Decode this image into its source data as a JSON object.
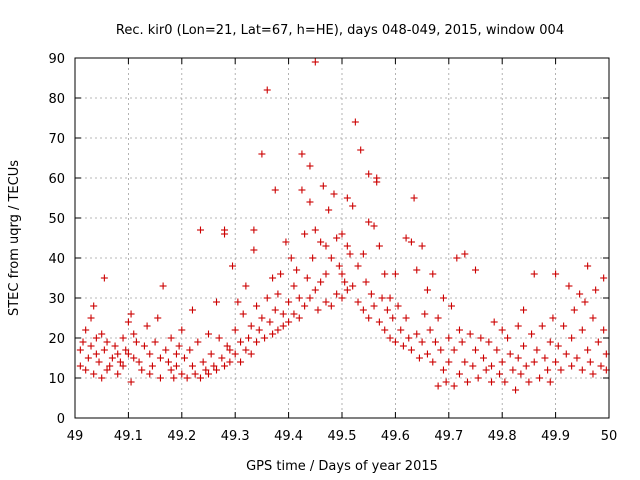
{
  "chart_data": {
    "type": "scatter",
    "title": "Rec. kir0 (Lon=21, Lat=67, h=HE), days 048-049, 2015, window 004",
    "xlabel": "GPS time / Days of year 2015",
    "ylabel": "STEC from uqrg / TECUs",
    "xlim": [
      49,
      50
    ],
    "ylim": [
      0,
      90
    ],
    "x_ticks": [
      "49",
      "49.1",
      "49.2",
      "49.3",
      "49.4",
      "49.5",
      "49.6",
      "49.7",
      "49.8",
      "49.9",
      "50"
    ],
    "y_ticks": [
      "0",
      "10",
      "20",
      "30",
      "40",
      "50",
      "60",
      "70",
      "80",
      "90"
    ],
    "grid": true,
    "marker": "+",
    "marker_color": "#cc0000",
    "points": [
      [
        49.01,
        17
      ],
      [
        49.01,
        13
      ],
      [
        49.015,
        19
      ],
      [
        49.02,
        22
      ],
      [
        49.02,
        12
      ],
      [
        49.025,
        15
      ],
      [
        49.03,
        18
      ],
      [
        49.03,
        25
      ],
      [
        49.035,
        28
      ],
      [
        49.035,
        11
      ],
      [
        49.04,
        16
      ],
      [
        49.04,
        20
      ],
      [
        49.045,
        14
      ],
      [
        49.05,
        21
      ],
      [
        49.05,
        10
      ],
      [
        49.055,
        35
      ],
      [
        49.055,
        17
      ],
      [
        49.06,
        19
      ],
      [
        49.06,
        12
      ],
      [
        49.065,
        13
      ],
      [
        49.07,
        15
      ],
      [
        49.075,
        18
      ],
      [
        49.08,
        16
      ],
      [
        49.08,
        11
      ],
      [
        49.085,
        14
      ],
      [
        49.09,
        20
      ],
      [
        49.09,
        13
      ],
      [
        49.095,
        17
      ],
      [
        49.1,
        24
      ],
      [
        49.1,
        16
      ],
      [
        49.105,
        26
      ],
      [
        49.105,
        9
      ],
      [
        49.11,
        21
      ],
      [
        49.11,
        15
      ],
      [
        49.115,
        19
      ],
      [
        49.12,
        14
      ],
      [
        49.125,
        12
      ],
      [
        49.13,
        18
      ],
      [
        49.135,
        23
      ],
      [
        49.14,
        16
      ],
      [
        49.14,
        11
      ],
      [
        49.145,
        13
      ],
      [
        49.15,
        19
      ],
      [
        49.155,
        25
      ],
      [
        49.16,
        15
      ],
      [
        49.16,
        10
      ],
      [
        49.165,
        33
      ],
      [
        49.17,
        17
      ],
      [
        49.175,
        14
      ],
      [
        49.18,
        12
      ],
      [
        49.18,
        20
      ],
      [
        49.185,
        10
      ],
      [
        49.19,
        16
      ],
      [
        49.19,
        13
      ],
      [
        49.195,
        18
      ],
      [
        49.2,
        11
      ],
      [
        49.2,
        22
      ],
      [
        49.205,
        15
      ],
      [
        49.21,
        10
      ],
      [
        49.215,
        17
      ],
      [
        49.22,
        13
      ],
      [
        49.22,
        27
      ],
      [
        49.225,
        11
      ],
      [
        49.23,
        19
      ],
      [
        49.235,
        47
      ],
      [
        49.235,
        10
      ],
      [
        49.24,
        14
      ],
      [
        49.245,
        12
      ],
      [
        49.25,
        21
      ],
      [
        49.25,
        11
      ],
      [
        49.255,
        16
      ],
      [
        49.26,
        13
      ],
      [
        49.265,
        29
      ],
      [
        49.265,
        12
      ],
      [
        49.27,
        20
      ],
      [
        49.275,
        15
      ],
      [
        49.28,
        47
      ],
      [
        49.28,
        46
      ],
      [
        49.28,
        13
      ],
      [
        49.285,
        18
      ],
      [
        49.29,
        17
      ],
      [
        49.29,
        14
      ],
      [
        49.295,
        38
      ],
      [
        49.3,
        22
      ],
      [
        49.3,
        16
      ],
      [
        49.305,
        29
      ],
      [
        49.31,
        19
      ],
      [
        49.31,
        14
      ],
      [
        49.315,
        26
      ],
      [
        49.32,
        33
      ],
      [
        49.32,
        17
      ],
      [
        49.325,
        20
      ],
      [
        49.33,
        23
      ],
      [
        49.33,
        16
      ],
      [
        49.335,
        47
      ],
      [
        49.335,
        42
      ],
      [
        49.34,
        19
      ],
      [
        49.34,
        28
      ],
      [
        49.345,
        22
      ],
      [
        49.35,
        66
      ],
      [
        49.35,
        25
      ],
      [
        49.355,
        20
      ],
      [
        49.36,
        82
      ],
      [
        49.36,
        30
      ],
      [
        49.365,
        24
      ],
      [
        49.37,
        35
      ],
      [
        49.37,
        21
      ],
      [
        49.375,
        57
      ],
      [
        49.375,
        27
      ],
      [
        49.38,
        31
      ],
      [
        49.38,
        22
      ],
      [
        49.385,
        36
      ],
      [
        49.39,
        26
      ],
      [
        49.39,
        23
      ],
      [
        49.395,
        44
      ],
      [
        49.4,
        29
      ],
      [
        49.4,
        24
      ],
      [
        49.405,
        40
      ],
      [
        49.41,
        33
      ],
      [
        49.41,
        26
      ],
      [
        49.415,
        37
      ],
      [
        49.42,
        30
      ],
      [
        49.42,
        25
      ],
      [
        49.425,
        66
      ],
      [
        49.425,
        57
      ],
      [
        49.43,
        46
      ],
      [
        49.43,
        28
      ],
      [
        49.435,
        35
      ],
      [
        49.44,
        54
      ],
      [
        49.44,
        63
      ],
      [
        49.44,
        30
      ],
      [
        49.445,
        40
      ],
      [
        49.45,
        89
      ],
      [
        49.45,
        47
      ],
      [
        49.45,
        32
      ],
      [
        49.455,
        27
      ],
      [
        49.46,
        44
      ],
      [
        49.46,
        34
      ],
      [
        49.465,
        58
      ],
      [
        49.47,
        43
      ],
      [
        49.47,
        36
      ],
      [
        49.47,
        29
      ],
      [
        49.475,
        52
      ],
      [
        49.48,
        40
      ],
      [
        49.48,
        28
      ],
      [
        49.485,
        56
      ],
      [
        49.49,
        45
      ],
      [
        49.49,
        31
      ],
      [
        49.495,
        38
      ],
      [
        49.5,
        46
      ],
      [
        49.5,
        36
      ],
      [
        49.5,
        30
      ],
      [
        49.505,
        34
      ],
      [
        49.51,
        55
      ],
      [
        49.51,
        43
      ],
      [
        49.51,
        32
      ],
      [
        49.515,
        41
      ],
      [
        49.52,
        53
      ],
      [
        49.52,
        33
      ],
      [
        49.525,
        74
      ],
      [
        49.53,
        38
      ],
      [
        49.53,
        29
      ],
      [
        49.535,
        67
      ],
      [
        49.54,
        41
      ],
      [
        49.54,
        27
      ],
      [
        49.545,
        34
      ],
      [
        49.55,
        61
      ],
      [
        49.55,
        49
      ],
      [
        49.55,
        25
      ],
      [
        49.555,
        31
      ],
      [
        49.56,
        48
      ],
      [
        49.56,
        28
      ],
      [
        49.565,
        60
      ],
      [
        49.565,
        59
      ],
      [
        49.57,
        43
      ],
      [
        49.57,
        24
      ],
      [
        49.575,
        30
      ],
      [
        49.58,
        36
      ],
      [
        49.58,
        22
      ],
      [
        49.585,
        27
      ],
      [
        49.59,
        30
      ],
      [
        49.59,
        20
      ],
      [
        49.595,
        25
      ],
      [
        49.6,
        36
      ],
      [
        49.6,
        19
      ],
      [
        49.605,
        28
      ],
      [
        49.61,
        22
      ],
      [
        49.615,
        18
      ],
      [
        49.62,
        45
      ],
      [
        49.62,
        25
      ],
      [
        49.625,
        20
      ],
      [
        49.63,
        44
      ],
      [
        49.63,
        17
      ],
      [
        49.635,
        55
      ],
      [
        49.64,
        37
      ],
      [
        49.64,
        21
      ],
      [
        49.645,
        15
      ],
      [
        49.65,
        43
      ],
      [
        49.65,
        19
      ],
      [
        49.655,
        26
      ],
      [
        49.66,
        16
      ],
      [
        49.66,
        32
      ],
      [
        49.665,
        22
      ],
      [
        49.67,
        14
      ],
      [
        49.67,
        36
      ],
      [
        49.675,
        19
      ],
      [
        49.68,
        8
      ],
      [
        49.68,
        25
      ],
      [
        49.685,
        17
      ],
      [
        49.69,
        12
      ],
      [
        49.69,
        30
      ],
      [
        49.695,
        9
      ],
      [
        49.7,
        20
      ],
      [
        49.7,
        14
      ],
      [
        49.705,
        28
      ],
      [
        49.71,
        8
      ],
      [
        49.71,
        17
      ],
      [
        49.715,
        40
      ],
      [
        49.72,
        11
      ],
      [
        49.72,
        22
      ],
      [
        49.725,
        19
      ],
      [
        49.73,
        41
      ],
      [
        49.73,
        14
      ],
      [
        49.735,
        9
      ],
      [
        49.74,
        21
      ],
      [
        49.745,
        13
      ],
      [
        49.75,
        37
      ],
      [
        49.75,
        17
      ],
      [
        49.755,
        10
      ],
      [
        49.76,
        20
      ],
      [
        49.765,
        15
      ],
      [
        49.77,
        12
      ],
      [
        49.775,
        19
      ],
      [
        49.78,
        13
      ],
      [
        49.78,
        9
      ],
      [
        49.785,
        24
      ],
      [
        49.79,
        17
      ],
      [
        49.795,
        11
      ],
      [
        49.8,
        22
      ],
      [
        49.8,
        14
      ],
      [
        49.805,
        9
      ],
      [
        49.81,
        20
      ],
      [
        49.815,
        16
      ],
      [
        49.82,
        12
      ],
      [
        49.825,
        7
      ],
      [
        49.83,
        23
      ],
      [
        49.83,
        15
      ],
      [
        49.835,
        11
      ],
      [
        49.84,
        27
      ],
      [
        49.84,
        18
      ],
      [
        49.845,
        13
      ],
      [
        49.85,
        9
      ],
      [
        49.855,
        21
      ],
      [
        49.86,
        36
      ],
      [
        49.86,
        14
      ],
      [
        49.865,
        17
      ],
      [
        49.87,
        10
      ],
      [
        49.875,
        23
      ],
      [
        49.88,
        15
      ],
      [
        49.885,
        12
      ],
      [
        49.89,
        19
      ],
      [
        49.89,
        9
      ],
      [
        49.895,
        25
      ],
      [
        49.9,
        36
      ],
      [
        49.9,
        14
      ],
      [
        49.905,
        18
      ],
      [
        49.91,
        12
      ],
      [
        49.915,
        23
      ],
      [
        49.92,
        16
      ],
      [
        49.925,
        33
      ],
      [
        49.93,
        13
      ],
      [
        49.93,
        20
      ],
      [
        49.935,
        27
      ],
      [
        49.94,
        15
      ],
      [
        49.945,
        31
      ],
      [
        49.95,
        22
      ],
      [
        49.95,
        12
      ],
      [
        49.955,
        29
      ],
      [
        49.96,
        38
      ],
      [
        49.96,
        17
      ],
      [
        49.965,
        14
      ],
      [
        49.97,
        25
      ],
      [
        49.97,
        11
      ],
      [
        49.975,
        32
      ],
      [
        49.98,
        19
      ],
      [
        49.985,
        13
      ],
      [
        49.99,
        35
      ],
      [
        49.99,
        22
      ],
      [
        49.995,
        12
      ],
      [
        49.995,
        16
      ]
    ]
  }
}
